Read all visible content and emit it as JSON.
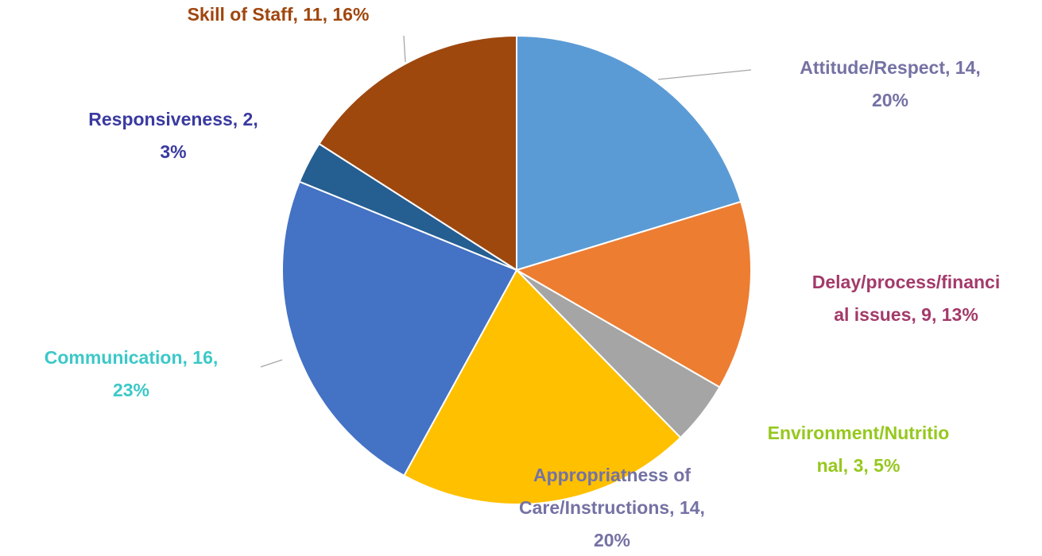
{
  "chart_data": {
    "type": "pie",
    "values": [
      14,
      9,
      3,
      14,
      16,
      2,
      11
    ],
    "value_labels": [
      [
        "Attitude/Respect, 14,",
        "20%"
      ],
      [
        "Delay/process/financi",
        "al issues, 9, 13%"
      ],
      [
        "Environment/Nutritio",
        "nal, 3, 5%"
      ],
      [
        "Appropriatness of",
        "Care/Instructions, 14,",
        "20%"
      ],
      [
        "Communication, 16,",
        "23%"
      ],
      [
        "Responsiveness, 2,",
        "3%"
      ],
      [
        "Skill of Staff, 11, 16%"
      ]
    ],
    "colors": [
      "#5b9bd5",
      "#ed7d31",
      "#a5a5a5",
      "#ffc000",
      "#4472c4",
      "#255e91",
      "#9e480e"
    ],
    "label_colors": [
      "#7472a4",
      "#a33a6a",
      "#96c81e",
      "#7472a4",
      "#3cc8c8",
      "#3a3aa0",
      "#a0460e"
    ]
  }
}
